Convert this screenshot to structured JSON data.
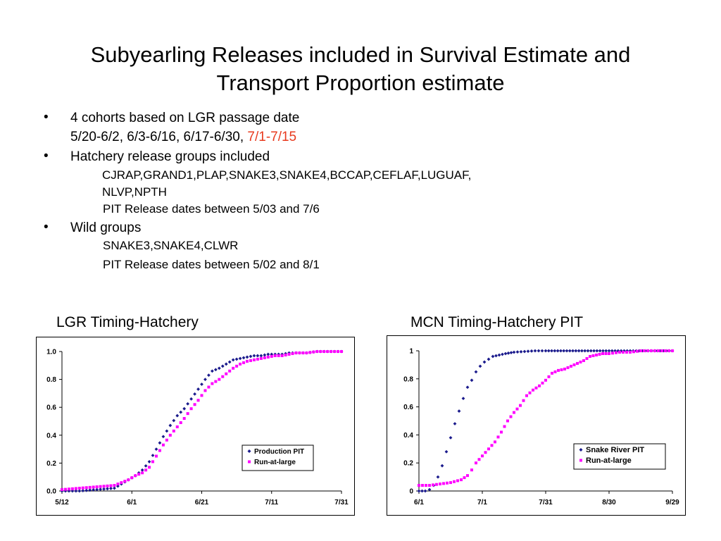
{
  "slide": {
    "title_line1": "Subyearling Releases included in Survival Estimate and",
    "title_line2": "Transport Proportion estimate"
  },
  "bullets": {
    "b1_text": "4 cohorts based on LGR passage date",
    "b1_sub_black": "5/20-6/2, 6/3-6/16, 6/17-6/30, ",
    "b1_sub_red": "7/1-7/15",
    "b2_text": "Hatchery release groups included",
    "b2_line1": "CJRAP,GRAND1,PLAP,SNAKE3,SNAKE4,BCCAP,CEFLAF,LUGUAF,",
    "b2_line2": "NLVP,NPTH",
    "b2_line3": "PIT Release dates between 5/03 and 7/6",
    "b3_text": "Wild groups",
    "b3_line1": "SNAKE3,SNAKE4,CLWR",
    "b3_line2": "PIT Release dates between 5/02 and 8/1",
    "bullet_glyph": "•",
    "accent_color": "#e8391d"
  },
  "charts": {
    "left_title": "LGR Timing-Hatchery",
    "right_title": "MCN Timing-Hatchery PIT"
  },
  "chart_data": [
    {
      "type": "scatter",
      "title": "LGR Timing-Hatchery",
      "xlabel": "",
      "ylabel": "",
      "x_ticks": [
        "5/12",
        "6/1",
        "6/21",
        "7/11",
        "7/31"
      ],
      "y_ticks": [
        "0.0",
        "0.2",
        "0.4",
        "0.6",
        "0.8",
        "1.0"
      ],
      "xlim": [
        0,
        80
      ],
      "ylim": [
        0,
        1
      ],
      "grid": false,
      "legend_position": "bottom-right",
      "series": [
        {
          "name": "Production PIT",
          "color": "#1a1a8c",
          "marker": "diamond",
          "x": [
            0,
            5,
            10,
            15,
            17,
            19,
            21,
            23,
            25,
            27,
            29,
            31,
            33,
            35,
            37,
            39,
            41,
            43,
            45,
            47,
            49,
            51,
            53,
            55,
            57,
            59,
            61,
            63,
            65,
            67,
            70,
            73,
            76,
            80
          ],
          "y": [
            0.0,
            0.0,
            0.01,
            0.02,
            0.05,
            0.08,
            0.11,
            0.15,
            0.21,
            0.3,
            0.39,
            0.47,
            0.54,
            0.59,
            0.66,
            0.73,
            0.8,
            0.86,
            0.88,
            0.91,
            0.94,
            0.95,
            0.96,
            0.97,
            0.97,
            0.98,
            0.98,
            0.98,
            0.99,
            0.99,
            0.99,
            1.0,
            1.0,
            1.0
          ]
        },
        {
          "name": "Run-at-large",
          "color": "#ff00ff",
          "marker": "square",
          "x": [
            0,
            5,
            10,
            15,
            17,
            19,
            21,
            23,
            25,
            27,
            29,
            31,
            33,
            35,
            37,
            39,
            41,
            43,
            45,
            47,
            49,
            51,
            53,
            55,
            57,
            59,
            61,
            63,
            65,
            67,
            70,
            73,
            76,
            80
          ],
          "y": [
            0.01,
            0.02,
            0.03,
            0.04,
            0.06,
            0.08,
            0.11,
            0.13,
            0.17,
            0.25,
            0.33,
            0.4,
            0.46,
            0.52,
            0.59,
            0.65,
            0.72,
            0.77,
            0.8,
            0.84,
            0.88,
            0.91,
            0.93,
            0.94,
            0.95,
            0.96,
            0.97,
            0.97,
            0.98,
            0.99,
            0.99,
            1.0,
            1.0,
            1.0
          ]
        }
      ]
    },
    {
      "type": "scatter",
      "title": "MCN Timing-Hatchery PIT",
      "xlabel": "",
      "ylabel": "",
      "x_ticks": [
        "6/1",
        "7/1",
        "7/31",
        "8/30",
        "9/29"
      ],
      "y_ticks": [
        "0",
        "0.2",
        "0.4",
        "0.6",
        "0.8",
        "1"
      ],
      "xlim": [
        0,
        120
      ],
      "ylim": [
        0,
        1
      ],
      "grid": false,
      "legend_position": "bottom-right",
      "series": [
        {
          "name": "Snake River PIT",
          "color": "#1a1a8c",
          "marker": "diamond",
          "x": [
            0,
            3,
            5,
            7,
            9,
            11,
            13,
            15,
            17,
            19,
            21,
            23,
            25,
            27,
            29,
            31,
            33,
            35,
            38,
            41,
            45,
            50,
            55,
            60,
            70,
            80,
            90,
            100,
            110,
            120
          ],
          "y": [
            0.0,
            0.0,
            0.01,
            0.04,
            0.1,
            0.18,
            0.28,
            0.38,
            0.48,
            0.57,
            0.66,
            0.74,
            0.79,
            0.85,
            0.89,
            0.92,
            0.94,
            0.96,
            0.97,
            0.98,
            0.99,
            0.995,
            1.0,
            1.0,
            1.0,
            1.0,
            1.0,
            1.0,
            1.0,
            1.0
          ]
        },
        {
          "name": "Run-at-large",
          "color": "#ff00ff",
          "marker": "square",
          "x": [
            0,
            5,
            10,
            15,
            20,
            23,
            25,
            27,
            30,
            33,
            36,
            39,
            42,
            45,
            48,
            51,
            54,
            57,
            60,
            63,
            66,
            69,
            72,
            75,
            78,
            81,
            84,
            87,
            90,
            95,
            100,
            105,
            110,
            115,
            120
          ],
          "y": [
            0.04,
            0.04,
            0.05,
            0.06,
            0.08,
            0.11,
            0.15,
            0.2,
            0.25,
            0.3,
            0.35,
            0.42,
            0.5,
            0.56,
            0.61,
            0.68,
            0.72,
            0.75,
            0.79,
            0.84,
            0.86,
            0.87,
            0.89,
            0.91,
            0.93,
            0.96,
            0.97,
            0.98,
            0.98,
            0.99,
            0.99,
            1.0,
            1.0,
            1.0,
            1.0
          ]
        }
      ]
    }
  ]
}
